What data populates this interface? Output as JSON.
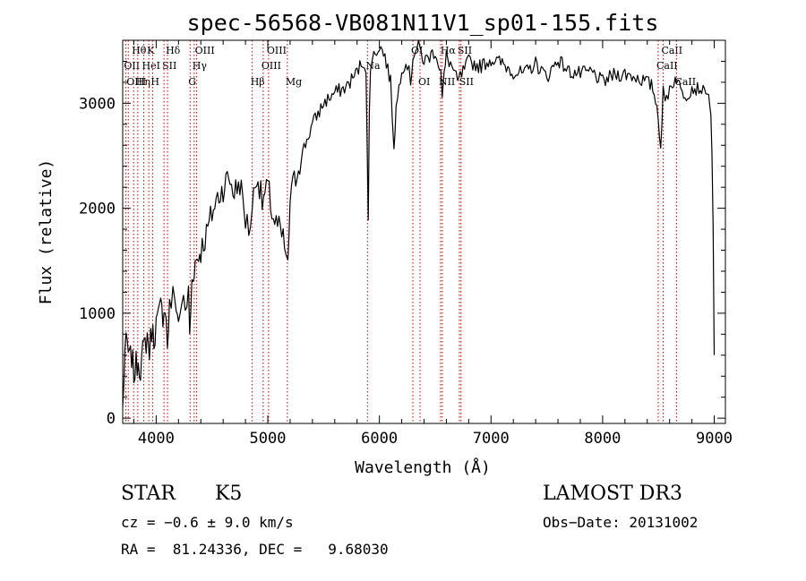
{
  "chart_data": {
    "type": "line",
    "title": "spec-56568-VB081N11V1_sp01-155.fits",
    "xlabel": "Wavelength (Å)",
    "ylabel": "Flux (relative)",
    "xlim": [
      3700,
      9100
    ],
    "ylim": [
      -50,
      3600
    ],
    "x_ticks": [
      4000,
      5000,
      6000,
      7000,
      8000,
      9000
    ],
    "x_tick_labels": [
      "4000",
      "5000",
      "6000",
      "7000",
      "8000",
      "9000"
    ],
    "y_ticks": [
      0,
      1000,
      2000,
      3000
    ],
    "y_tick_labels": [
      "0",
      "1000",
      "2000",
      "3000"
    ],
    "series": [
      {
        "name": "spectrum",
        "x": [
          3700,
          3720,
          3740,
          3760,
          3780,
          3800,
          3820,
          3840,
          3860,
          3880,
          3900,
          3920,
          3940,
          3960,
          3980,
          4000,
          4020,
          4040,
          4060,
          4080,
          4100,
          4120,
          4150,
          4180,
          4200,
          4230,
          4260,
          4290,
          4300,
          4320,
          4340,
          4360,
          4380,
          4400,
          4450,
          4500,
          4550,
          4600,
          4650,
          4700,
          4750,
          4800,
          4830,
          4860,
          4900,
          4950,
          5000,
          5050,
          5100,
          5150,
          5180,
          5200,
          5250,
          5300,
          5400,
          5500,
          5600,
          5700,
          5800,
          5850,
          5880,
          5900,
          5910,
          5920,
          5950,
          6000,
          6050,
          6100,
          6130,
          6150,
          6200,
          6250,
          6280,
          6300,
          6350,
          6400,
          6450,
          6500,
          6550,
          6563,
          6580,
          6600,
          6650,
          6700,
          6750,
          6800,
          6900,
          7000,
          7100,
          7200,
          7300,
          7400,
          7500,
          7600,
          7700,
          7800,
          7900,
          8000,
          8100,
          8200,
          8300,
          8400,
          8450,
          8498,
          8520,
          8542,
          8560,
          8600,
          8662,
          8700,
          8750,
          8800,
          8850,
          8900,
          8950,
          8970,
          8980,
          8990,
          9000
        ],
        "values": [
          80,
          650,
          700,
          550,
          600,
          420,
          500,
          560,
          480,
          620,
          700,
          780,
          640,
          850,
          760,
          900,
          950,
          1050,
          1000,
          1100,
          700,
          1050,
          1150,
          1100,
          900,
          1150,
          1000,
          1200,
          780,
          1300,
          1450,
          1500,
          1550,
          1600,
          1750,
          1950,
          2100,
          2200,
          2300,
          2150,
          2250,
          1900,
          1800,
          2000,
          2350,
          2050,
          2200,
          1900,
          1800,
          1650,
          1400,
          2100,
          2300,
          2500,
          2800,
          3000,
          3100,
          3150,
          3300,
          3400,
          3350,
          1850,
          2900,
          3380,
          3450,
          3550,
          3450,
          3200,
          2600,
          2950,
          3350,
          3380,
          3200,
          3450,
          3550,
          3400,
          3450,
          3500,
          3300,
          3050,
          3250,
          3450,
          3350,
          3200,
          3300,
          3400,
          3350,
          3420,
          3380,
          3300,
          3280,
          3380,
          3250,
          3420,
          3300,
          3280,
          3300,
          3200,
          3270,
          3280,
          3250,
          3200,
          3150,
          2900,
          2580,
          3100,
          3000,
          3150,
          3250,
          3120,
          3080,
          3150,
          3140,
          3150,
          3070,
          2900,
          2500,
          1800,
          600
        ]
      }
    ],
    "line_annotations": [
      {
        "label": "Hθ",
        "x": 3798,
        "row": 1
      },
      {
        "label": "OII",
        "x": 3727,
        "row": 2
      },
      {
        "label": "OIII",
        "x": 3750,
        "row": 3
      },
      {
        "label": "Hη",
        "x": 3835,
        "row": 3
      },
      {
        "label": "K",
        "x": 3934,
        "row": 1
      },
      {
        "label": "HeI",
        "x": 3889,
        "row": 2
      },
      {
        "label": "H",
        "x": 3968,
        "row": 3
      },
      {
        "label": "SII",
        "x": 4070,
        "row": 2
      },
      {
        "label": "Hδ",
        "x": 4102,
        "row": 1
      },
      {
        "label": "OIII",
        "x": 4363,
        "row": 1
      },
      {
        "label": "Hγ",
        "x": 4340,
        "row": 2
      },
      {
        "label": "G",
        "x": 4304,
        "row": 3
      },
      {
        "label": "Hβ",
        "x": 4861,
        "row": 3
      },
      {
        "label": "OIII",
        "x": 5007,
        "row": 1
      },
      {
        "label": "OIII",
        "x": 4959,
        "row": 2
      },
      {
        "label": "Mg",
        "x": 5175,
        "row": 3
      },
      {
        "label": "Na",
        "x": 5893,
        "row": 2
      },
      {
        "label": "OI",
        "x": 6300,
        "row": 1
      },
      {
        "label": "OI",
        "x": 6364,
        "row": 3
      },
      {
        "label": "Hα",
        "x": 6563,
        "row": 1
      },
      {
        "label": "NII",
        "x": 6548,
        "row": 3
      },
      {
        "label": "SII",
        "x": 6716,
        "row": 1
      },
      {
        "label": "SII",
        "x": 6731,
        "row": 3
      },
      {
        "label": "CaII",
        "x": 8498,
        "row": 2
      },
      {
        "label": "CaII",
        "x": 8542,
        "row": 1
      },
      {
        "label": "CaII",
        "x": 8662,
        "row": 3
      }
    ]
  },
  "info": {
    "object_class": "STAR",
    "subclass": "K5",
    "survey": "LAMOST DR3",
    "redshift": "cz = −0.6 ± 9.0 km/s",
    "obs_date": "Obs−Date: 20131002",
    "coords": "RA =  81.24336, DEC =   9.68030"
  },
  "style": {
    "line_color": "#000000",
    "annotation_color": "#cc0000",
    "background": "#ffffff"
  }
}
